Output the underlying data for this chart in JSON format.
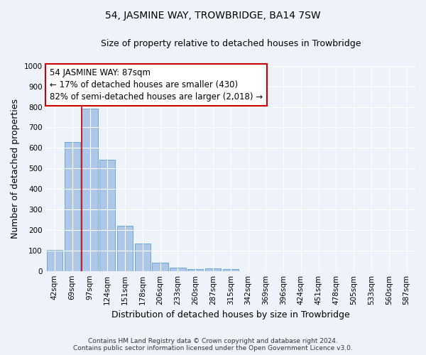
{
  "title": "54, JASMINE WAY, TROWBRIDGE, BA14 7SW",
  "subtitle": "Size of property relative to detached houses in Trowbridge",
  "xlabel": "Distribution of detached houses by size in Trowbridge",
  "ylabel": "Number of detached properties",
  "categories": [
    "42sqm",
    "69sqm",
    "97sqm",
    "124sqm",
    "151sqm",
    "178sqm",
    "206sqm",
    "233sqm",
    "260sqm",
    "287sqm",
    "315sqm",
    "342sqm",
    "369sqm",
    "396sqm",
    "424sqm",
    "451sqm",
    "478sqm",
    "505sqm",
    "533sqm",
    "560sqm",
    "587sqm"
  ],
  "values": [
    103,
    628,
    790,
    541,
    221,
    133,
    42,
    17,
    10,
    12,
    10,
    0,
    0,
    0,
    0,
    0,
    0,
    0,
    0,
    0,
    0
  ],
  "bar_color": "#aec6e8",
  "bar_edge_color": "#5a9fd4",
  "vline_color": "#cc0000",
  "annotation_text": "54 JASMINE WAY: 87sqm\n← 17% of detached houses are smaller (430)\n82% of semi-detached houses are larger (2,018) →",
  "annotation_box_color": "#ffffff",
  "annotation_box_edge": "#cc0000",
  "ylim": [
    0,
    1000
  ],
  "yticks": [
    0,
    100,
    200,
    300,
    400,
    500,
    600,
    700,
    800,
    900,
    1000
  ],
  "footer_line1": "Contains HM Land Registry data © Crown copyright and database right 2024.",
  "footer_line2": "Contains public sector information licensed under the Open Government Licence v3.0.",
  "bg_color": "#eef2f9",
  "plot_bg_color": "#eef2f9",
  "grid_color": "#ffffff",
  "title_fontsize": 10,
  "subtitle_fontsize": 9,
  "axis_label_fontsize": 9,
  "tick_fontsize": 7.5,
  "annotation_fontsize": 8.5,
  "footer_fontsize": 6.5
}
